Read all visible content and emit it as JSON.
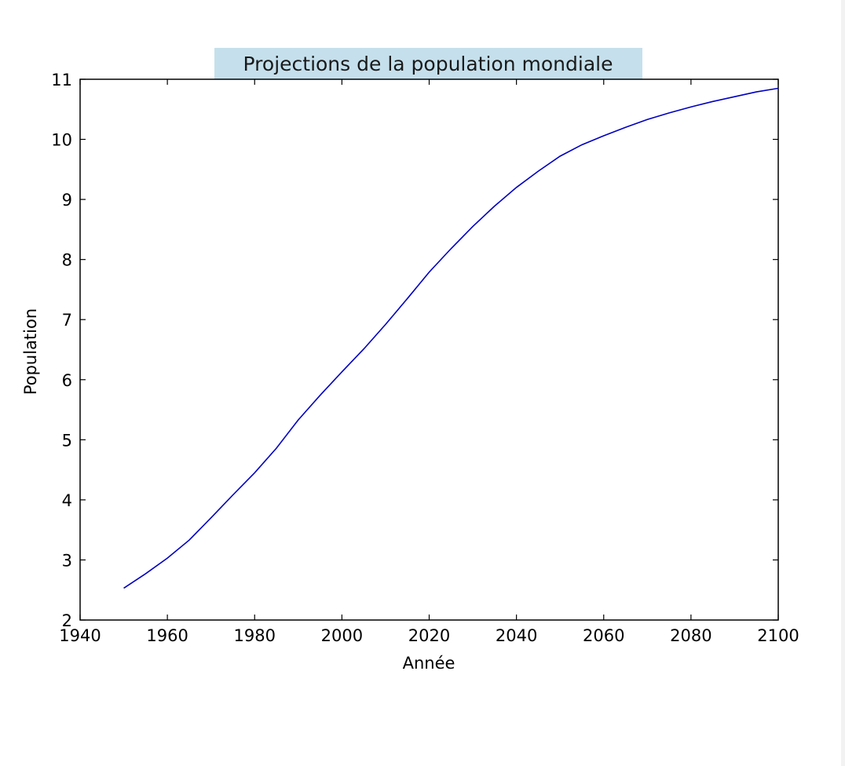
{
  "chart_data": {
    "type": "line",
    "title": "Projections de la population mondiale",
    "xlabel": "Année",
    "ylabel": "Population",
    "xlim": [
      1940,
      2100
    ],
    "ylim": [
      2,
      11
    ],
    "x_ticks": [
      1940,
      1960,
      1980,
      2000,
      2020,
      2040,
      2060,
      2080,
      2100
    ],
    "y_ticks": [
      2,
      3,
      4,
      5,
      6,
      7,
      8,
      9,
      10,
      11
    ],
    "grid": false,
    "legend": "none",
    "colors": {
      "line": "#0000bf",
      "title_box": "#c5e0ec",
      "axes": "#000000"
    },
    "series": [
      {
        "x": [
          1950,
          1955,
          1960,
          1965,
          1970,
          1975,
          1980,
          1985,
          1990,
          1995,
          2000,
          2005,
          2010,
          2015,
          2020,
          2025,
          2030,
          2035,
          2040,
          2045,
          2050,
          2055,
          2060,
          2065,
          2070,
          2075,
          2080,
          2085,
          2090,
          2095,
          2100
        ],
        "y": [
          2.53,
          2.77,
          3.03,
          3.33,
          3.7,
          4.08,
          4.45,
          4.86,
          5.33,
          5.74,
          6.13,
          6.51,
          6.92,
          7.35,
          7.79,
          8.18,
          8.55,
          8.89,
          9.2,
          9.47,
          9.72,
          9.91,
          10.06,
          10.2,
          10.33,
          10.44,
          10.54,
          10.63,
          10.71,
          10.79,
          10.85
        ]
      }
    ]
  }
}
